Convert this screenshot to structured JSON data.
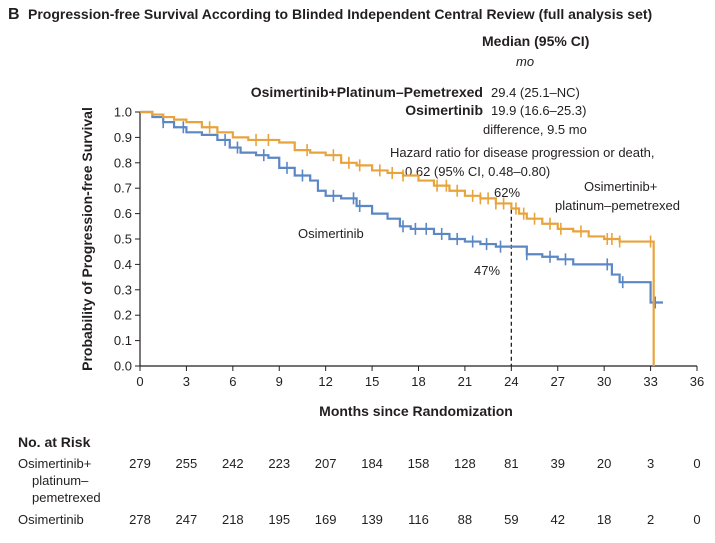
{
  "panel_letter": "B",
  "chart_data": {
    "type": "line",
    "title": "Progression-free Survival According to Blinded Independent Central Review (full analysis set)",
    "xlabel": "Months since Randomization",
    "ylabel": "Probability of Progression-free Survival",
    "xlim": [
      0,
      36
    ],
    "ylim": [
      0,
      1.0
    ],
    "x_ticks": [
      "0",
      "3",
      "6",
      "9",
      "12",
      "15",
      "18",
      "21",
      "24",
      "27",
      "30",
      "33",
      "36"
    ],
    "y_ticks": [
      "0.0",
      "0.1",
      "0.2",
      "0.3",
      "0.4",
      "0.5",
      "0.6",
      "0.7",
      "0.8",
      "0.9",
      "1.0"
    ],
    "grid": false,
    "series": [
      {
        "name": "Osimertinib+ platinum–pemetrexed",
        "label_lines": [
          "Osimertinib+",
          "platinum–pemetrexed"
        ],
        "color": "#e8a33d",
        "points": [
          [
            0,
            1.0
          ],
          [
            0.8,
            0.99
          ],
          [
            1.5,
            0.98
          ],
          [
            2.2,
            0.97
          ],
          [
            3,
            0.96
          ],
          [
            4,
            0.94
          ],
          [
            5,
            0.92
          ],
          [
            6,
            0.9
          ],
          [
            7,
            0.89
          ],
          [
            8,
            0.89
          ],
          [
            9,
            0.88
          ],
          [
            10,
            0.85
          ],
          [
            11,
            0.84
          ],
          [
            12,
            0.83
          ],
          [
            13,
            0.8
          ],
          [
            14,
            0.79
          ],
          [
            15,
            0.77
          ],
          [
            16,
            0.76
          ],
          [
            17,
            0.75
          ],
          [
            18,
            0.73
          ],
          [
            19,
            0.71
          ],
          [
            20,
            0.69
          ],
          [
            21,
            0.67
          ],
          [
            22,
            0.66
          ],
          [
            23,
            0.64
          ],
          [
            24,
            0.62
          ],
          [
            24.5,
            0.6
          ],
          [
            25,
            0.58
          ],
          [
            26,
            0.56
          ],
          [
            27,
            0.54
          ],
          [
            28,
            0.53
          ],
          [
            29,
            0.51
          ],
          [
            30,
            0.5
          ],
          [
            31,
            0.49
          ],
          [
            33.2,
            0.49
          ],
          [
            33.2,
            0.0
          ]
        ],
        "censor_x": [
          4.5,
          7.5,
          8.3,
          10.8,
          12.5,
          13.5,
          14.2,
          15.5,
          16.3,
          17,
          19.2,
          19.8,
          20.5,
          21.5,
          22,
          22.5,
          23,
          23.5,
          24.3,
          24.8,
          25.5,
          26.5,
          27.2,
          28.5,
          30.2,
          30.5,
          31,
          33
        ]
      },
      {
        "name": "Osimertinib",
        "label_lines": [
          "Osimertinib"
        ],
        "color": "#5b87c5",
        "points": [
          [
            0,
            1.0
          ],
          [
            0.8,
            0.98
          ],
          [
            1.5,
            0.96
          ],
          [
            2.2,
            0.94
          ],
          [
            3,
            0.92
          ],
          [
            4,
            0.91
          ],
          [
            5,
            0.89
          ],
          [
            5.8,
            0.86
          ],
          [
            6.5,
            0.84
          ],
          [
            7.5,
            0.83
          ],
          [
            8.3,
            0.82
          ],
          [
            9,
            0.78
          ],
          [
            10,
            0.75
          ],
          [
            11,
            0.73
          ],
          [
            11.5,
            0.69
          ],
          [
            12,
            0.67
          ],
          [
            13,
            0.66
          ],
          [
            14,
            0.63
          ],
          [
            15,
            0.6
          ],
          [
            16,
            0.58
          ],
          [
            16.8,
            0.55
          ],
          [
            17.5,
            0.54
          ],
          [
            19,
            0.52
          ],
          [
            20,
            0.5
          ],
          [
            21,
            0.49
          ],
          [
            22,
            0.48
          ],
          [
            23,
            0.47
          ],
          [
            24,
            0.47
          ],
          [
            25,
            0.44
          ],
          [
            26,
            0.43
          ],
          [
            27,
            0.42
          ],
          [
            28,
            0.4
          ],
          [
            30,
            0.4
          ],
          [
            30.5,
            0.36
          ],
          [
            31,
            0.33
          ],
          [
            32.5,
            0.33
          ],
          [
            33,
            0.25
          ],
          [
            33.8,
            0.25
          ]
        ],
        "censor_x": [
          1.5,
          2.8,
          5.5,
          6.3,
          8,
          9.5,
          10.5,
          12.5,
          13.8,
          14.2,
          17,
          17.8,
          18.5,
          19.5,
          20.5,
          21.5,
          22.4,
          23.3,
          25,
          26.5,
          27.5,
          30.2,
          31.2,
          33.3
        ]
      }
    ],
    "annotations": [
      {
        "text": "62%",
        "x": 24,
        "y": 0.62
      },
      {
        "text": "47%",
        "x": 24,
        "y": 0.47
      }
    ],
    "reference_line_x": 24
  },
  "legend_block": {
    "header": "Median (95% CI)",
    "unit": "mo",
    "rows": [
      {
        "name": "Osimertinib+Platinum–Pemetrexed",
        "value": "29.4 (25.1–NC)"
      },
      {
        "name": "Osimertinib",
        "value": "19.9 (16.6–25.3)"
      }
    ],
    "difference": "difference, 9.5 mo",
    "hr_line1": "Hazard ratio for disease progression or death,",
    "hr_line2": "0.62 (95% CI, 0.48–0.80)"
  },
  "risk_table": {
    "title": "No. at Risk",
    "rows": [
      {
        "label_lines": [
          "Osimertinib+",
          "platinum–",
          "pemetrexed"
        ],
        "values": [
          "279",
          "255",
          "242",
          "223",
          "207",
          "184",
          "158",
          "128",
          "81",
          "39",
          "20",
          "3",
          "0"
        ]
      },
      {
        "label_lines": [
          "Osimertinib"
        ],
        "values": [
          "278",
          "247",
          "218",
          "195",
          "169",
          "139",
          "116",
          "88",
          "59",
          "42",
          "18",
          "2",
          "0"
        ]
      }
    ]
  }
}
